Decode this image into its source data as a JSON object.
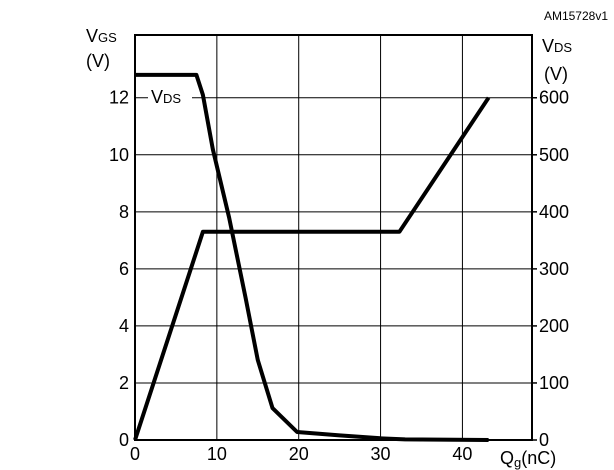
{
  "chart_data": {
    "type": "line",
    "title": "",
    "code": "AM15728v1",
    "xlabel": "Qg(nC)",
    "xlabel_main": "Q",
    "xlabel_sub": "g",
    "xlabel_unit": "(nC)",
    "x_ticks": [
      0,
      10,
      20,
      30,
      40
    ],
    "xlim": [
      0,
      48.5
    ],
    "y_left": {
      "label_main": "V",
      "label_sub": "GS",
      "unit": "(V)",
      "ticks": [
        0,
        2,
        4,
        6,
        8,
        10,
        12
      ],
      "ylim": [
        0,
        14.2
      ]
    },
    "y_right": {
      "label_main": "V",
      "label_sub": "DS",
      "unit": "(V)",
      "ticks": [
        0,
        100,
        200,
        300,
        400,
        500,
        600
      ],
      "ylim": [
        0,
        710
      ]
    },
    "grid": true,
    "series": [
      {
        "axis": "left",
        "x": [
          0,
          8.3,
          32.3,
          43.2
        ],
        "y": [
          0,
          7.3,
          7.3,
          12.0
        ]
      },
      {
        "name": "VDS",
        "label_main": "V",
        "label_sub": "DS",
        "axis": "right",
        "x": [
          0,
          7.5,
          8.3,
          9.5,
          11.5,
          13.5,
          15.0,
          16.8,
          19.8,
          25,
          30,
          33,
          43.2
        ],
        "y": [
          640,
          640,
          605,
          510,
          390,
          250,
          140,
          56,
          14,
          8,
          3,
          1,
          0
        ]
      }
    ]
  }
}
